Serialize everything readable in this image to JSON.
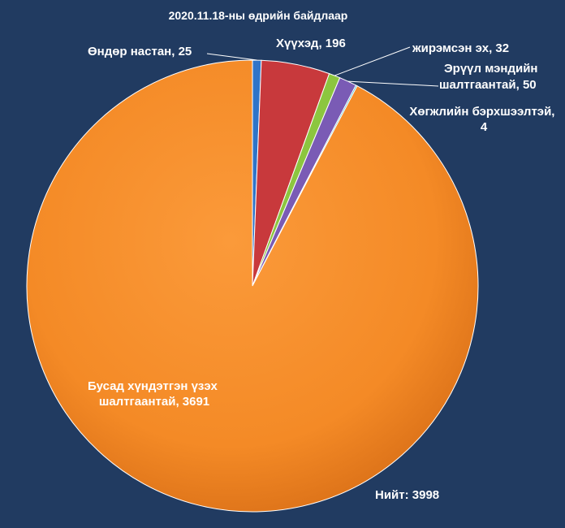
{
  "chart_data": {
    "type": "pie",
    "title": "2020.11.18-ны өдрийн байдлаар",
    "total_label": "Нийт:  3998",
    "slices": [
      {
        "name": "Өндөр настан",
        "value": 25,
        "label_lines": [
          "Өндөр настан, 25"
        ],
        "color": "#2f74c8"
      },
      {
        "name": "Хүүхэд",
        "value": 196,
        "label_lines": [
          "Хүүхэд, 196"
        ],
        "color": "#c8393c"
      },
      {
        "name": "жирэмсэн эх",
        "value": 32,
        "label_lines": [
          "жирэмсэн эх, 32"
        ],
        "color": "#8cc63f"
      },
      {
        "name": "Эрүүл мэндийн шалтгаантай",
        "value": 50,
        "label_lines": [
          "Эрүүл мэндийн",
          "шалтгаантай, 50"
        ],
        "color": "#7a5bb5"
      },
      {
        "name": "Хөгжлийн бэрхшээлтэй",
        "value": 4,
        "label_lines": [
          "Хөгжлийн бэрхшээлтэй,",
          "4"
        ],
        "color": "#2bb0c8"
      },
      {
        "name": "Бусад хүндэтгэн үзэх шалтгаантай",
        "value": 3691,
        "label_lines": [
          "Бусад хүндэтгэн үзэх",
          "шалтгаантай, 3691"
        ],
        "color": "#f7922e"
      }
    ]
  }
}
